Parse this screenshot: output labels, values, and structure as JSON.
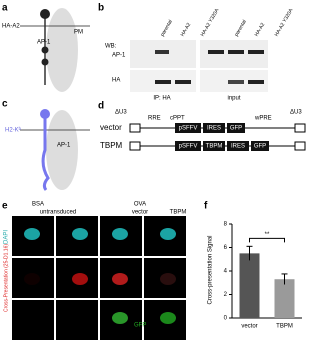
{
  "panels": {
    "a": {
      "letter": "a",
      "construct": "HA-A2",
      "membrane": "PM",
      "adaptor": "AP-1"
    },
    "b": {
      "letter": "b",
      "blot_label": "WB:",
      "lanes": [
        "parental",
        "HA-A2",
        "HA-A2 Y320A",
        "parental",
        "HA-A2",
        "HA-A2 Y320A"
      ],
      "rows": [
        "AP-1",
        "HA"
      ],
      "groups": [
        "IP: HA",
        "input"
      ]
    },
    "c": {
      "letter": "c",
      "construct": "H2-Kᵇ",
      "adaptor": "AP-1"
    },
    "d": {
      "letter": "d",
      "elements": [
        "ΔU3",
        "RRE",
        "cPPT",
        "wPRE",
        "ΔU3"
      ],
      "vector": {
        "name": "vector",
        "parts": [
          "pSFFV",
          "IRES",
          "GFP"
        ]
      },
      "tbpm": {
        "name": "TBPM",
        "parts": [
          "pSFFV",
          "TBPM",
          "IRES",
          "GFP"
        ]
      }
    },
    "e": {
      "letter": "e",
      "conditions": [
        "BSA",
        "OVA"
      ],
      "columns": [
        "untransduced",
        "vector",
        "TBPM"
      ],
      "rows": [
        "DAPI",
        "Cross-Presentation (25-D1.16)",
        "GFP"
      ]
    },
    "f": {
      "letter": "f",
      "type": "bar",
      "ylabel": "Cross-presentation Signal",
      "categories": [
        "vector",
        "TBPM"
      ],
      "values": [
        5.5,
        3.3
      ],
      "errors": [
        0.6,
        0.45
      ],
      "colors": [
        "#555555",
        "#9a9a9a"
      ],
      "ylim": [
        0,
        8
      ],
      "yticks": [
        0,
        2,
        4,
        6,
        8
      ],
      "annotation": "**"
    }
  }
}
